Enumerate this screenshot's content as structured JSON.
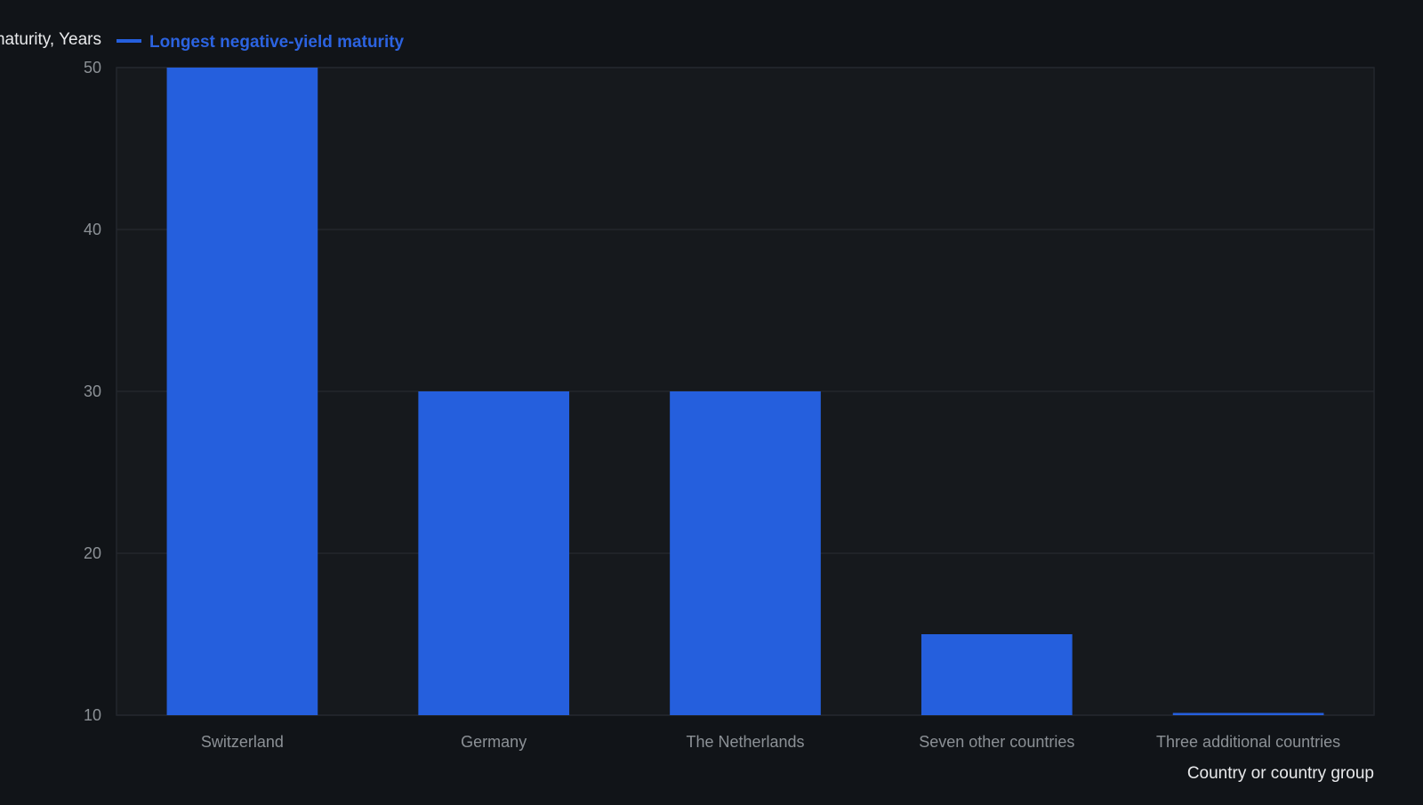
{
  "chart_data": {
    "type": "bar",
    "ylabel": "maturity, Years",
    "xlabel": "Country or country group",
    "legend": {
      "position": "top-left",
      "label": "Longest negative-yield maturity"
    },
    "grid": true,
    "ylim": [
      10,
      50
    ],
    "yticks": [
      10,
      20,
      30,
      40,
      50
    ],
    "categories": [
      "Switzerland",
      "Germany",
      "The Netherlands",
      "Seven other countries",
      "Three additional countries"
    ],
    "series": [
      {
        "name": "Longest negative-yield maturity",
        "values": [
          50,
          30,
          30,
          15,
          10
        ]
      }
    ]
  },
  "colors": {
    "background": "#111418",
    "plot_background": "#16191d",
    "bar": "#255fdd",
    "legend_text": "#2c63e0",
    "grid": "#23272d",
    "axis_text": "#8c9196",
    "label_text": "#e9eaec"
  }
}
